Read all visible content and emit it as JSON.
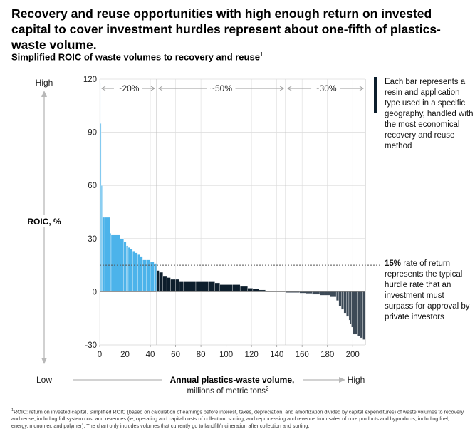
{
  "title": "Recovery and reuse opportunities with high enough return on invested capital to cover investment hurdles represent about one-fifth of plastics-waste volume.",
  "subtitle": "Simplified ROIC of waste volumes to recovery and reuse",
  "subtitle_sup": "1",
  "bar_note": "Each bar represents a resin and application type used in a specific geography, handled with the most economical recovery and reuse method",
  "hurdle_note": {
    "bold": "15%",
    "text": " rate of return represents the typical hurdle rate that an investment must surpass for approval by private investors"
  },
  "footnote": {
    "sup": "1",
    "text": "ROIC: return on invested capital. Simplified ROIC (based on calculation of earnings before interest, taxes, depreciation, and amortization divided by capital expenditures) of waste volumes to recovery and reuse, including full system cost and revenues (ie, operating and capital costs of collection, sorting, and reprocessing and revenue from sales of core products and byproducts, including fuel, energy, monomer, and polymer). The chart only includes volumes that currently go to landfill/incineration after collection and sorting."
  },
  "colors": {
    "above_hurdle": "#4cb3ea",
    "below_hurdle_positive": "#0d1e2c",
    "negative": "#3d4a57",
    "axis_arrow": "#b8b8b8",
    "hurdle_line": "#555555",
    "grid": "#dcdcdc"
  },
  "chart_data": {
    "type": "bar",
    "title": "",
    "xlabel": "Annual plastics-waste volume,",
    "xlabel_line2": "millions of metric tons",
    "xlabel_sup": "2",
    "ylabel": "ROIC, %",
    "xlim": [
      0,
      210
    ],
    "ylim": [
      -30,
      120
    ],
    "xticks": [
      0,
      20,
      40,
      60,
      80,
      100,
      120,
      140,
      160,
      180,
      200
    ],
    "yticks": [
      -30,
      0,
      30,
      60,
      90,
      120
    ],
    "grid": true,
    "y_axis_low": "Low",
    "y_axis_high": "High",
    "x_axis_high": "High",
    "hurdle_rate": 15,
    "segments": [
      {
        "label": "~20%",
        "x_start": 0,
        "x_end": 45
      },
      {
        "label": "~50%",
        "x_start": 45,
        "x_end": 147
      },
      {
        "label": "~30%",
        "x_start": 147,
        "x_end": 210
      }
    ],
    "bars": [
      {
        "x0": 0,
        "x1": 0.6,
        "y": 118
      },
      {
        "x0": 0.6,
        "x1": 1.2,
        "y": 95
      },
      {
        "x0": 1.2,
        "x1": 2,
        "y": 60
      },
      {
        "x0": 2,
        "x1": 4,
        "y": 42
      },
      {
        "x0": 4,
        "x1": 8,
        "y": 42
      },
      {
        "x0": 8,
        "x1": 9,
        "y": 33
      },
      {
        "x0": 9,
        "x1": 16,
        "y": 32
      },
      {
        "x0": 16,
        "x1": 19,
        "y": 30
      },
      {
        "x0": 19,
        "x1": 21,
        "y": 28
      },
      {
        "x0": 21,
        "x1": 22.5,
        "y": 26
      },
      {
        "x0": 22.5,
        "x1": 24,
        "y": 25
      },
      {
        "x0": 24,
        "x1": 26,
        "y": 24
      },
      {
        "x0": 26,
        "x1": 28,
        "y": 23
      },
      {
        "x0": 28,
        "x1": 30,
        "y": 22
      },
      {
        "x0": 30,
        "x1": 32,
        "y": 21
      },
      {
        "x0": 32,
        "x1": 34,
        "y": 20
      },
      {
        "x0": 34,
        "x1": 37,
        "y": 18
      },
      {
        "x0": 37,
        "x1": 40,
        "y": 18
      },
      {
        "x0": 40,
        "x1": 43,
        "y": 17
      },
      {
        "x0": 43,
        "x1": 45,
        "y": 16
      },
      {
        "x0": 45,
        "x1": 47,
        "y": 12
      },
      {
        "x0": 47,
        "x1": 50,
        "y": 11
      },
      {
        "x0": 50,
        "x1": 53,
        "y": 9
      },
      {
        "x0": 53,
        "x1": 56,
        "y": 8
      },
      {
        "x0": 56,
        "x1": 60,
        "y": 7
      },
      {
        "x0": 60,
        "x1": 63,
        "y": 7
      },
      {
        "x0": 63,
        "x1": 66,
        "y": 6
      },
      {
        "x0": 66,
        "x1": 69,
        "y": 6
      },
      {
        "x0": 69,
        "x1": 76,
        "y": 6
      },
      {
        "x0": 76,
        "x1": 86,
        "y": 6
      },
      {
        "x0": 86,
        "x1": 91,
        "y": 6
      },
      {
        "x0": 91,
        "x1": 95,
        "y": 5
      },
      {
        "x0": 95,
        "x1": 100,
        "y": 4
      },
      {
        "x0": 100,
        "x1": 105,
        "y": 4
      },
      {
        "x0": 105,
        "x1": 111,
        "y": 4
      },
      {
        "x0": 111,
        "x1": 117,
        "y": 3
      },
      {
        "x0": 117,
        "x1": 121,
        "y": 2
      },
      {
        "x0": 121,
        "x1": 126,
        "y": 1.5
      },
      {
        "x0": 126,
        "x1": 131,
        "y": 1
      },
      {
        "x0": 131,
        "x1": 138,
        "y": 0.5
      },
      {
        "x0": 138,
        "x1": 147,
        "y": 0.3
      },
      {
        "x0": 147,
        "x1": 158,
        "y": -0.5
      },
      {
        "x0": 158,
        "x1": 163,
        "y": -0.8
      },
      {
        "x0": 163,
        "x1": 168,
        "y": -1
      },
      {
        "x0": 168,
        "x1": 174,
        "y": -1.5
      },
      {
        "x0": 174,
        "x1": 178,
        "y": -2
      },
      {
        "x0": 178,
        "x1": 182,
        "y": -2
      },
      {
        "x0": 182,
        "x1": 187,
        "y": -3
      },
      {
        "x0": 187,
        "x1": 189,
        "y": -5
      },
      {
        "x0": 189,
        "x1": 191,
        "y": -8
      },
      {
        "x0": 191,
        "x1": 193,
        "y": -10
      },
      {
        "x0": 193,
        "x1": 195,
        "y": -12
      },
      {
        "x0": 195,
        "x1": 197,
        "y": -14
      },
      {
        "x0": 197,
        "x1": 198,
        "y": -16
      },
      {
        "x0": 198,
        "x1": 199,
        "y": -18
      },
      {
        "x0": 199,
        "x1": 200,
        "y": -20
      },
      {
        "x0": 200,
        "x1": 202,
        "y": -24
      },
      {
        "x0": 202,
        "x1": 204,
        "y": -24
      },
      {
        "x0": 204,
        "x1": 206,
        "y": -25
      },
      {
        "x0": 206,
        "x1": 208,
        "y": -26
      },
      {
        "x0": 208,
        "x1": 210,
        "y": -27
      }
    ]
  }
}
